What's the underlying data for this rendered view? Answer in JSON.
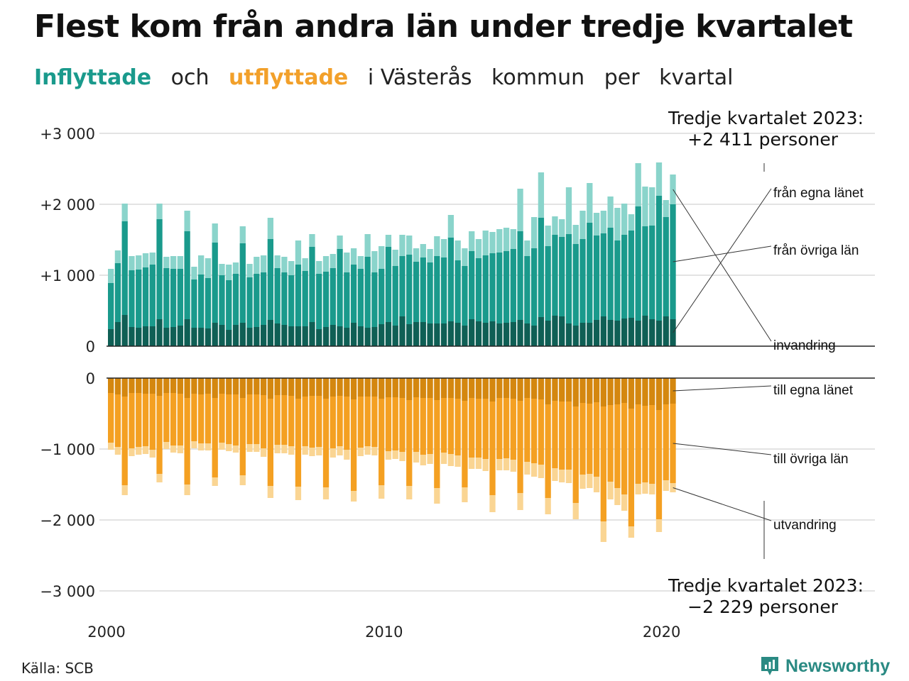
{
  "title": "Flest kom från andra län under tredje kvartalet",
  "subtitle": {
    "part1": "Inflyttade",
    "part2": "och",
    "part3": "utflyttade",
    "part4": "i Västerås",
    "part5": "kommun",
    "part6": "per",
    "part7": "kvartal"
  },
  "source": "Källa: SCB",
  "brand": "Newsworthy",
  "colors": {
    "in_own": "#0f5f55",
    "in_other": "#1a9a8c",
    "in_immig": "#8ad4cb",
    "out_own": "#d4870f",
    "out_other": "#f4a022",
    "out_emig": "#fad593",
    "grid": "#e3e3e3",
    "brand": "#2a8a83"
  },
  "chart_data": {
    "type": "bar",
    "stacked": true,
    "x_start": "2000 Q1",
    "x_tick_labels": [
      "2000",
      "2010",
      "2020"
    ],
    "inflow_axis": {
      "ticks": [
        0,
        1000,
        2000,
        3000
      ],
      "tick_labels": [
        "0",
        "+1 000",
        "+2 000",
        "+3 000"
      ],
      "ylim": [
        0,
        3000
      ]
    },
    "outflow_axis": {
      "ticks": [
        0,
        -1000,
        -2000,
        -3000
      ],
      "tick_labels": [
        "0",
        "−1 000",
        "−2 000",
        "−3 000"
      ],
      "ylim": [
        -3000,
        0
      ]
    },
    "inflow_series": [
      {
        "name": "från egna länet",
        "values": [
          240,
          340,
          440,
          270,
          260,
          280,
          280,
          380,
          260,
          270,
          290,
          380,
          260,
          260,
          250,
          330,
          300,
          230,
          300,
          330,
          260,
          270,
          300,
          370,
          320,
          300,
          280,
          280,
          280,
          340,
          240,
          270,
          300,
          280,
          260,
          330,
          280,
          260,
          270,
          310,
          340,
          290,
          420,
          310,
          340,
          340,
          320,
          320,
          320,
          350,
          330,
          290,
          380,
          350,
          330,
          350,
          320,
          330,
          340,
          370,
          320,
          290,
          410,
          360,
          430,
          420,
          320,
          290,
          330,
          330,
          370,
          420,
          370,
          360,
          390,
          400,
          360,
          430,
          380,
          360,
          420,
          380
        ]
      },
      {
        "name": "från övriga län",
        "values": [
          650,
          830,
          1320,
          800,
          820,
          830,
          870,
          1410,
          840,
          820,
          800,
          1240,
          680,
          750,
          710,
          1130,
          700,
          700,
          720,
          1120,
          710,
          750,
          740,
          1140,
          780,
          740,
          720,
          870,
          780,
          1060,
          780,
          780,
          800,
          1090,
          780,
          820,
          810,
          1000,
          770,
          780,
          1060,
          840,
          850,
          980,
          850,
          910,
          860,
          950,
          930,
          1180,
          880,
          840,
          960,
          890,
          950,
          960,
          1000,
          1010,
          1030,
          1250,
          950,
          1090,
          1400,
          1050,
          1140,
          1120,
          1260,
          1150,
          1180,
          1410,
          1190,
          1170,
          1300,
          1130,
          1180,
          1230,
          1610,
          1260,
          1320,
          1760,
          1400,
          1620
        ]
      },
      {
        "name": "invandring",
        "values": [
          200,
          180,
          250,
          200,
          200,
          200,
          170,
          220,
          160,
          180,
          180,
          290,
          180,
          270,
          280,
          270,
          160,
          220,
          160,
          240,
          190,
          240,
          240,
          300,
          180,
          220,
          200,
          340,
          180,
          180,
          180,
          220,
          200,
          190,
          280,
          230,
          180,
          320,
          300,
          320,
          170,
          230,
          300,
          270,
          190,
          190,
          190,
          280,
          260,
          320,
          280,
          250,
          280,
          270,
          350,
          300,
          330,
          330,
          280,
          600,
          220,
          440,
          640,
          290,
          260,
          250,
          660,
          270,
          400,
          560,
          320,
          320,
          440,
          460,
          440,
          230,
          610,
          560,
          540,
          470,
          240,
          420
        ]
      }
    ],
    "outflow_series": [
      {
        "name": "till egna länet",
        "values": [
          -210,
          -230,
          -260,
          -210,
          -210,
          -220,
          -220,
          -250,
          -210,
          -210,
          -220,
          -280,
          -220,
          -230,
          -220,
          -280,
          -220,
          -230,
          -230,
          -280,
          -230,
          -230,
          -240,
          -290,
          -240,
          -240,
          -250,
          -290,
          -260,
          -250,
          -250,
          -290,
          -260,
          -250,
          -260,
          -300,
          -260,
          -260,
          -260,
          -290,
          -270,
          -270,
          -280,
          -310,
          -270,
          -280,
          -280,
          -310,
          -280,
          -280,
          -290,
          -320,
          -280,
          -290,
          -290,
          -330,
          -280,
          -280,
          -290,
          -320,
          -280,
          -290,
          -300,
          -370,
          -320,
          -330,
          -330,
          -400,
          -350,
          -360,
          -340,
          -400,
          -380,
          -370,
          -350,
          -430,
          -370,
          -390,
          -380,
          -450,
          -370,
          -360
        ]
      },
      {
        "name": "till övriga län",
        "values": [
          -700,
          -740,
          -1250,
          -780,
          -760,
          -740,
          -790,
          -1100,
          -690,
          -740,
          -730,
          -1220,
          -670,
          -690,
          -700,
          -1120,
          -690,
          -700,
          -720,
          -1090,
          -700,
          -700,
          -750,
          -1230,
          -700,
          -700,
          -710,
          -1240,
          -700,
          -730,
          -720,
          -1250,
          -730,
          -710,
          -750,
          -1290,
          -720,
          -700,
          -710,
          -1220,
          -760,
          -750,
          -760,
          -1210,
          -770,
          -800,
          -790,
          -1240,
          -770,
          -790,
          -800,
          -1220,
          -840,
          -830,
          -850,
          -1320,
          -860,
          -850,
          -860,
          -1300,
          -900,
          -910,
          -920,
          -1320,
          -950,
          -960,
          -960,
          -1360,
          -1010,
          -990,
          -1050,
          -1620,
          -1080,
          -1180,
          -1290,
          -1660,
          -1120,
          -1080,
          -1110,
          -1540,
          -1070,
          -1120
        ]
      },
      {
        "name": "utvandring",
        "values": [
          -100,
          -110,
          -140,
          -110,
          -110,
          -110,
          -110,
          -120,
          -100,
          -100,
          -110,
          -150,
          -100,
          -100,
          -100,
          -120,
          -100,
          -100,
          -100,
          -140,
          -110,
          -110,
          -120,
          -170,
          -120,
          -120,
          -120,
          -190,
          -120,
          -120,
          -120,
          -170,
          -130,
          -130,
          -140,
          -150,
          -120,
          -120,
          -120,
          -190,
          -120,
          -120,
          -130,
          -190,
          -150,
          -150,
          -140,
          -220,
          -160,
          -170,
          -160,
          -210,
          -160,
          -160,
          -170,
          -240,
          -160,
          -170,
          -170,
          -240,
          -180,
          -190,
          -190,
          -230,
          -180,
          -180,
          -190,
          -230,
          -200,
          -200,
          -220,
          -290,
          -250,
          -240,
          -230,
          -160,
          -150,
          -160,
          -150,
          -180,
          -150,
          -130
        ]
      }
    ],
    "annotations": {
      "inflow_callout": [
        "Tredje kvartalet 2023:",
        "+2 411 personer"
      ],
      "outflow_callout": [
        "Tredje kvartalet 2023:",
        "−2 229 personer"
      ]
    }
  }
}
